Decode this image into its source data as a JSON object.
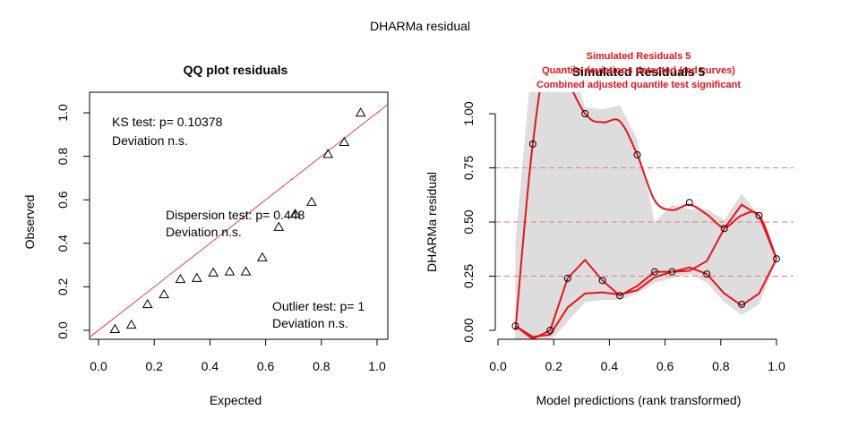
{
  "page": {
    "main_title": "DHARMa residual"
  },
  "chart_data": [
    {
      "type": "scatter",
      "title": "QQ plot residuals",
      "xlabel": "Expected",
      "ylabel": "Observed",
      "xlim": [
        0,
        1
      ],
      "ylim": [
        0,
        1
      ],
      "xticks": [
        "0.0",
        "0.2",
        "0.4",
        "0.6",
        "0.8",
        "1.0"
      ],
      "yticks": [
        "0.0",
        "0.2",
        "0.4",
        "0.6",
        "0.8",
        "1.0"
      ],
      "marker": "triangle-open",
      "reference_line_color": "#d9434c",
      "points": {
        "x": [
          0.059,
          0.118,
          0.176,
          0.235,
          0.294,
          0.353,
          0.412,
          0.471,
          0.529,
          0.588,
          0.647,
          0.706,
          0.765,
          0.824,
          0.882,
          0.941
        ],
        "y": [
          0.005,
          0.025,
          0.12,
          0.165,
          0.235,
          0.24,
          0.265,
          0.27,
          0.27,
          0.335,
          0.475,
          0.535,
          0.59,
          0.81,
          0.865,
          1.0
        ]
      },
      "annotations": {
        "ks_line1": "KS test: p= 0.10378",
        "ks_line2": "Deviation  n.s.",
        "disp_line1": "Dispersion test: p= 0.448",
        "disp_line2": "Deviation  n.s.",
        "out_line1": "Outlier test: p= 1",
        "out_line2": "Deviation  n.s."
      }
    },
    {
      "type": "line",
      "title": "Simulated Residuals 5",
      "subtitle_line1": "Simulated Residuals 5",
      "subtitle_line2": "Quantile deviations detected (red curves)",
      "subtitle_line3": "Combined adjusted quantile test significant",
      "subtitle_color": "#e8131b",
      "xlabel": "Model predictions (rank transformed)",
      "ylabel": "DHARMa residual",
      "xlim": [
        0,
        1
      ],
      "ylim": [
        0,
        1
      ],
      "xticks": [
        "0.0",
        "0.2",
        "0.4",
        "0.6",
        "0.8",
        "1.0"
      ],
      "yticks": [
        "0.00",
        "0.25",
        "0.50",
        "0.75",
        "1.00"
      ],
      "ref_lines": [
        0.25,
        0.5,
        0.75
      ],
      "curve_color": "#e8131b",
      "band_color": "#dddddd",
      "points": {
        "x": [
          0.0625,
          0.125,
          0.1875,
          0.25,
          0.3125,
          0.375,
          0.4375,
          0.5,
          0.5625,
          0.625,
          0.6875,
          0.75,
          0.8125,
          0.875,
          0.9375,
          1.0
        ],
        "y": [
          0.02,
          0.86,
          0.0,
          0.24,
          1.0,
          0.23,
          0.16,
          0.81,
          0.27,
          0.27,
          0.59,
          0.26,
          0.47,
          0.12,
          0.53,
          0.33
        ]
      },
      "series": [
        {
          "name": "upper",
          "x": [
            0.0625,
            0.125,
            0.1875,
            0.3125,
            0.375,
            0.4375,
            0.5,
            0.5625,
            0.625,
            0.6875,
            0.75,
            0.8125,
            0.875,
            0.9375,
            1.0
          ],
          "y": [
            0.0,
            0.86,
            1.25,
            1.0,
            0.96,
            0.965,
            0.81,
            0.6,
            0.555,
            0.58,
            0.535,
            0.475,
            0.53,
            0.53,
            0.33
          ]
        },
        {
          "name": "median",
          "x": [
            0.0625,
            0.125,
            0.1875,
            0.25,
            0.3125,
            0.375,
            0.4375,
            0.5,
            0.5625,
            0.625,
            0.6875,
            0.75,
            0.8125,
            0.875,
            0.9375,
            1.0
          ],
          "y": [
            0.02,
            -0.04,
            0.0,
            0.24,
            0.325,
            0.23,
            0.16,
            0.205,
            0.27,
            0.27,
            0.275,
            0.32,
            0.47,
            0.58,
            0.53,
            0.33
          ]
        },
        {
          "name": "lower",
          "x": [
            0.0625,
            0.125,
            0.1875,
            0.25,
            0.3125,
            0.375,
            0.4375,
            0.5,
            0.5625,
            0.625,
            0.6875,
            0.75,
            0.8125,
            0.875,
            0.9375,
            1.0
          ],
          "y": [
            0.02,
            -0.03,
            -0.02,
            0.105,
            0.17,
            0.175,
            0.165,
            0.185,
            0.245,
            0.27,
            0.29,
            0.26,
            0.17,
            0.115,
            0.17,
            0.33
          ]
        }
      ],
      "band_upper": [
        0.4,
        1.3,
        1.3,
        1.3,
        1.03,
        1.02,
        1.04,
        0.88,
        0.5,
        0.58,
        0.56,
        0.56,
        0.51,
        0.63,
        0.53,
        0.35
      ],
      "band_lower": [
        -0.05,
        -0.05,
        -0.05,
        0.04,
        0.13,
        0.14,
        0.14,
        0.17,
        0.22,
        0.24,
        0.26,
        0.22,
        0.13,
        0.07,
        0.12,
        0.32
      ]
    }
  ]
}
